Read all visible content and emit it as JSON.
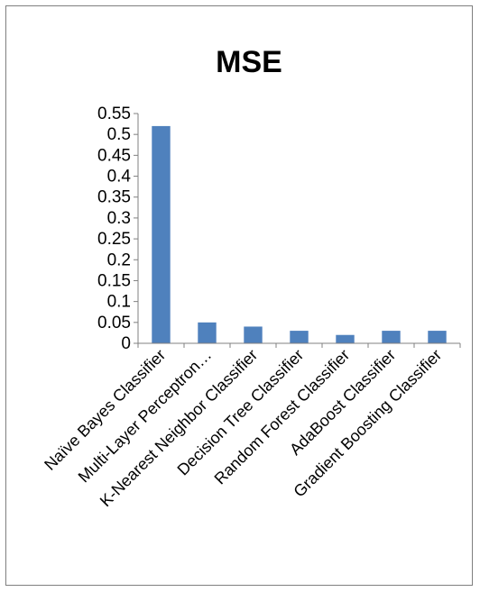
{
  "chart_data": {
    "type": "bar",
    "title": "MSE",
    "xlabel": "",
    "ylabel": "",
    "categories": [
      "Naïve Bayes Classifier",
      "Multi-Layer Perceptron…",
      "K-Nearest Neighbor Classifier",
      "Decision Tree Classifier",
      "Random Forest Classifier",
      "AdaBoost Classifier",
      "Gradient Boosting Classifier"
    ],
    "values": [
      0.52,
      0.05,
      0.04,
      0.03,
      0.02,
      0.03,
      0.03
    ],
    "yticks": [
      "0",
      "0.05",
      "0.1",
      "0.15",
      "0.2",
      "0.25",
      "0.3",
      "0.35",
      "0.4",
      "0.45",
      "0.5",
      "0.55"
    ],
    "ylim": [
      0,
      0.55
    ],
    "grid": false,
    "legend": "none",
    "bar_color": "#4f81bd"
  }
}
